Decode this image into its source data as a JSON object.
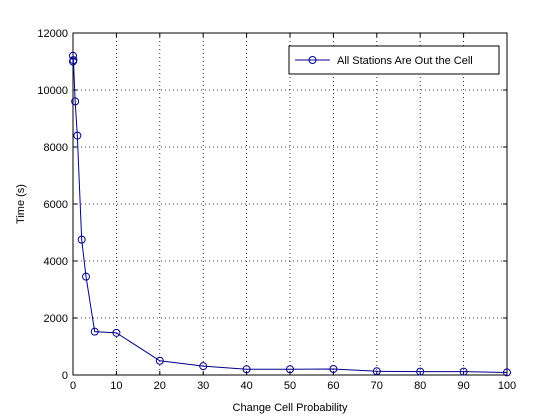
{
  "chart_data": {
    "type": "line",
    "xlabel": "Change Cell Probability",
    "ylabel": "Time (s)",
    "xlim": [
      0,
      100
    ],
    "ylim": [
      0,
      12000
    ],
    "xticks": [
      0,
      10,
      20,
      30,
      40,
      50,
      60,
      70,
      80,
      90,
      100
    ],
    "yticks": [
      0,
      2000,
      4000,
      6000,
      8000,
      10000,
      12000
    ],
    "grid": true,
    "legend_position": "top-right",
    "series": [
      {
        "name": "All Stations Are Out the Cell",
        "color": "#00008b",
        "marker": "circle",
        "x": [
          0,
          0,
          0.1,
          0.5,
          1,
          2,
          3,
          5,
          10,
          20,
          30,
          40,
          50,
          60,
          70,
          80,
          90,
          100
        ],
        "y": [
          11200,
          11000,
          11050,
          9600,
          8400,
          4750,
          3450,
          1520,
          1480,
          500,
          310,
          200,
          200,
          210,
          130,
          120,
          120,
          90
        ]
      }
    ]
  }
}
